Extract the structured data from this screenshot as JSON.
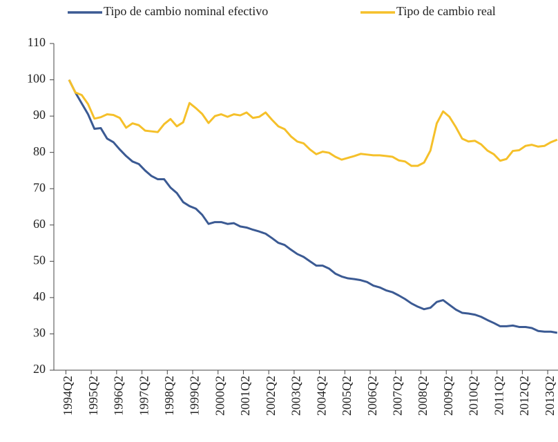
{
  "chart_data": {
    "type": "line",
    "categories": [
      "1994Q2",
      null,
      null,
      null,
      "1995Q2",
      null,
      null,
      null,
      "1996Q2",
      null,
      null,
      null,
      "1997Q2",
      null,
      null,
      null,
      "1998Q2",
      null,
      null,
      null,
      "1999Q2",
      null,
      null,
      null,
      "2000Q2",
      null,
      null,
      null,
      "2001Q2",
      null,
      null,
      null,
      "2002Q2",
      null,
      null,
      null,
      "2003Q2",
      null,
      null,
      null,
      "2004Q2",
      null,
      null,
      null,
      "2005Q2",
      null,
      null,
      null,
      "2006Q2",
      null,
      null,
      null,
      "2007Q2",
      null,
      null,
      null,
      "2008Q2",
      null,
      null,
      null,
      "2009Q2",
      null,
      null,
      null,
      "2010Q2",
      null,
      null,
      null,
      "2011Q2",
      null,
      null,
      null,
      "2012Q2",
      null,
      null,
      null,
      "2013Q2",
      null
    ],
    "series": [
      {
        "name": "Tipo de cambio nominal efectivo",
        "color": "#3b5a93",
        "values": [
          100,
          96.5,
          93.5,
          90.5,
          86.5,
          86.7,
          83.8,
          82.8,
          80.8,
          79,
          77.5,
          76.8,
          75,
          73.5,
          72.6,
          72.6,
          70.3,
          68.8,
          66.3,
          65.2,
          64.5,
          62.8,
          60.3,
          60.8,
          60.8,
          60.3,
          60.5,
          59.6,
          59.3,
          58.7,
          58.2,
          57.6,
          56.4,
          55.1,
          54.5,
          53.2,
          52,
          51.2,
          50,
          48.8,
          48.8,
          48,
          46.6,
          45.8,
          45.3,
          45.1,
          44.8,
          44.3,
          43.3,
          42.8,
          42,
          41.5,
          40.6,
          39.6,
          38.4,
          37.5,
          36.8,
          37.2,
          38.8,
          39.3,
          38,
          36.7,
          35.8,
          35.6,
          35.3,
          34.7,
          33.8,
          33,
          32.1,
          32.1,
          32.3,
          31.9,
          31.9,
          31.6,
          30.8,
          30.6,
          30.6,
          30.3
        ]
      },
      {
        "name": "Tipo de cambio real",
        "color": "#f5c02a",
        "values": [
          100,
          96.5,
          95.8,
          93.3,
          89.3,
          89.7,
          90.5,
          90.3,
          89.5,
          86.8,
          88,
          87.5,
          86,
          85.8,
          85.6,
          87.8,
          89.2,
          87.2,
          88.3,
          93.6,
          92.2,
          90.6,
          88.1,
          90,
          90.5,
          89.8,
          90.5,
          90.2,
          91,
          89.5,
          89.8,
          91,
          89,
          87.2,
          86.4,
          84.4,
          83,
          82.5,
          80.8,
          79.5,
          80.2,
          79.9,
          78.8,
          78,
          78.5,
          79,
          79.6,
          79.4,
          79.2,
          79.2,
          79,
          78.8,
          77.8,
          77.5,
          76.3,
          76.3,
          77.2,
          80.5,
          88,
          91.3,
          89.8,
          87,
          83.8,
          83,
          83.2,
          82.2,
          80.5,
          79.5,
          77.7,
          78.2,
          80.4,
          80.6,
          81.8,
          82.1,
          81.6,
          81.8,
          82.8,
          83.5
        ]
      }
    ],
    "ylim": [
      20,
      110
    ],
    "yticks": [
      20,
      30,
      40,
      50,
      60,
      70,
      80,
      90,
      100,
      110
    ],
    "legend": "top"
  }
}
